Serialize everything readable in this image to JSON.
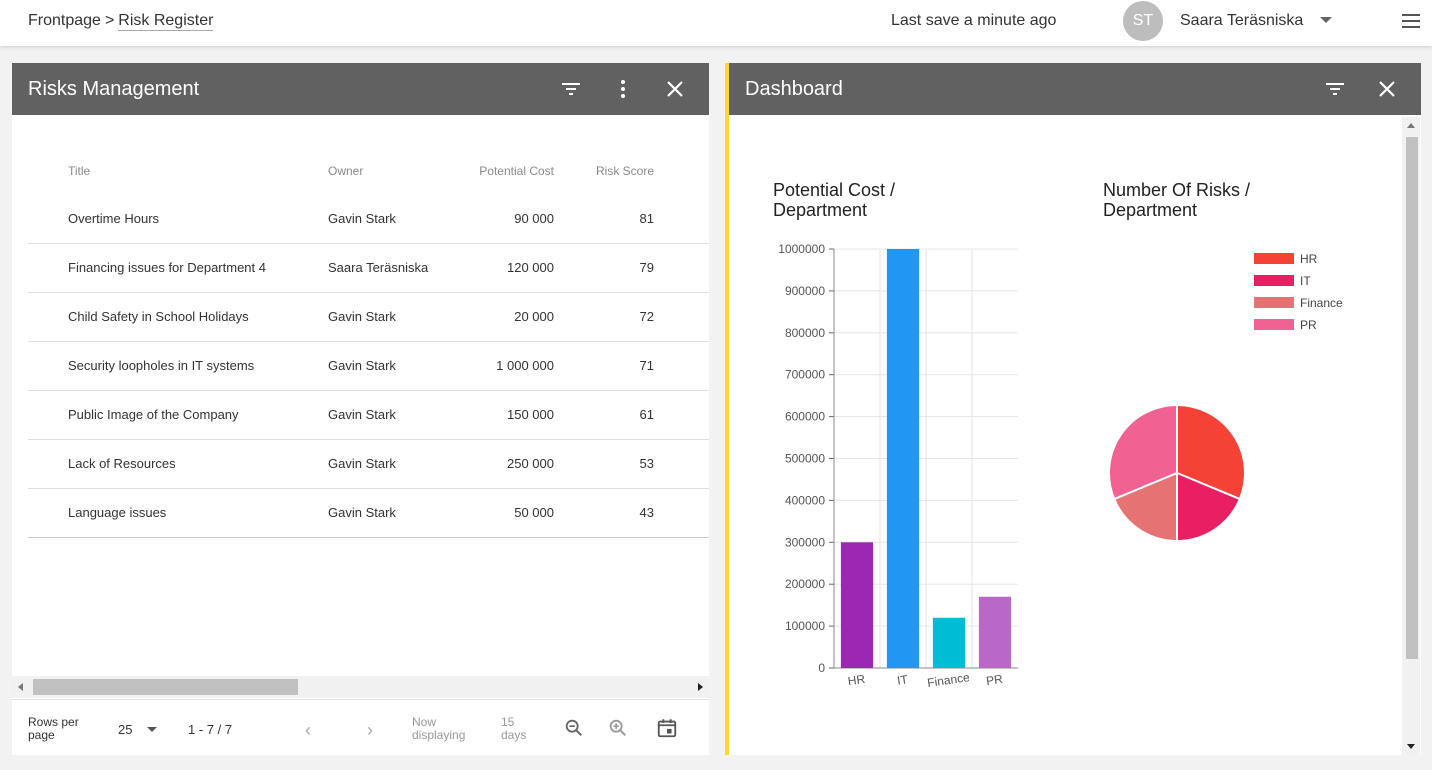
{
  "topbar": {
    "breadcrumb_root": "Frontpage",
    "breadcrumb_separator": ">",
    "breadcrumb_current": "Risk Register",
    "save_status": "Last save a minute ago",
    "avatar_initials": "ST",
    "user_name": "Saara Teräsniska"
  },
  "risk_panel": {
    "title": "Risks Management",
    "columns": [
      "Title",
      "Owner",
      "Potential Cost",
      "Risk Score"
    ],
    "rows": [
      {
        "title": "Overtime Hours",
        "owner": "Gavin Stark",
        "cost": "90 000",
        "score": "81"
      },
      {
        "title": "Financing issues for Department 4",
        "owner": "Saara Teräsniska",
        "cost": "120 000",
        "score": "79"
      },
      {
        "title": "Child Safety in School Holidays",
        "owner": "Gavin Stark",
        "cost": "20 000",
        "score": "72"
      },
      {
        "title": "Security loopholes in IT systems",
        "owner": "Gavin Stark",
        "cost": "1 000 000",
        "score": "71"
      },
      {
        "title": "Public Image of the Company",
        "owner": "Gavin Stark",
        "cost": "150 000",
        "score": "61"
      },
      {
        "title": "Lack of Resources",
        "owner": "Gavin Stark",
        "cost": "250 000",
        "score": "53"
      },
      {
        "title": "Language issues",
        "owner": "Gavin Stark",
        "cost": "50 000",
        "score": "43"
      }
    ],
    "footer": {
      "rows_per_page_label": "Rows per page",
      "rows_per_page_value": "25",
      "range": "1 - 7 / 7",
      "now_displaying": "Now displaying",
      "days": "15 days"
    }
  },
  "dashboard": {
    "title": "Dashboard"
  },
  "chart_data": [
    {
      "type": "bar",
      "title": "Potential Cost / Department",
      "categories": [
        "HR",
        "IT",
        "Finance",
        "PR"
      ],
      "values": [
        300000,
        1000000,
        120000,
        170000
      ],
      "colors": [
        "#9c27b0",
        "#2196f3",
        "#00bcd4",
        "#ba68c8"
      ],
      "ylim": [
        0,
        1000000
      ],
      "yticks": [
        0,
        100000,
        200000,
        300000,
        400000,
        500000,
        600000,
        700000,
        800000,
        900000,
        1000000
      ],
      "grid": true
    },
    {
      "type": "pie",
      "title": "Number Of Risks / Department",
      "labels": [
        "HR",
        "IT",
        "Finance",
        "PR"
      ],
      "values": [
        2,
        1.2,
        1.2,
        2
      ],
      "colors": [
        "#f44336",
        "#e91e63",
        "#e57373",
        "#f06292"
      ],
      "legend": "top-right"
    }
  ]
}
